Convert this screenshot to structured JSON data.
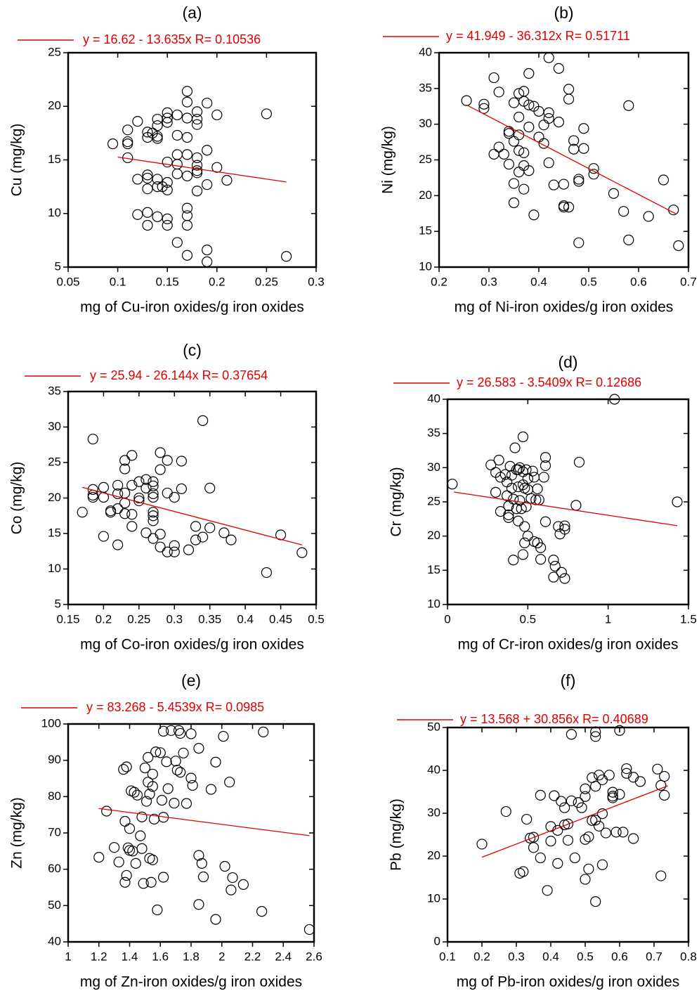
{
  "chart_data": [
    {
      "type": "scatter",
      "title": "(a)",
      "x_label": "mg of Cu-iron oxides/g iron oxides",
      "y_label": "Cu (mg/kg)",
      "xlim": [
        0.05,
        0.3
      ],
      "xticks": [
        0.05,
        0.1,
        0.15,
        0.2,
        0.25,
        0.3
      ],
      "ylim": [
        5,
        25
      ],
      "yticks": [
        5,
        10,
        15,
        20,
        25
      ],
      "series": [
        {
          "color": "#000000",
          "x": [
            0.095,
            0.11,
            0.11,
            0.11,
            0.11,
            0.12,
            0.12,
            0.12,
            0.13,
            0.13,
            0.13,
            0.13,
            0.13,
            0.13,
            0.13,
            0.135,
            0.14,
            0.14,
            0.14,
            0.14,
            0.14,
            0.14,
            0.14,
            0.145,
            0.15,
            0.15,
            0.15,
            0.15,
            0.15,
            0.15,
            0.15,
            0.15,
            0.16,
            0.16,
            0.16,
            0.16,
            0.16,
            0.16,
            0.17,
            0.17,
            0.17,
            0.17,
            0.17,
            0.17,
            0.17,
            0.17,
            0.17,
            0.17,
            0.18,
            0.18,
            0.18,
            0.18,
            0.18,
            0.18,
            0.18,
            0.18,
            0.19,
            0.19,
            0.19,
            0.19,
            0.19,
            0.2,
            0.2,
            0.21,
            0.25,
            0.27
          ],
          "values": [
            16.5,
            17.8,
            16.5,
            16.7,
            15.2,
            18.6,
            13.2,
            9.9,
            17.6,
            17.1,
            13.6,
            13.3,
            12.3,
            10.1,
            8.9,
            17.5,
            18.8,
            18.2,
            17.2,
            17.0,
            13.2,
            12.5,
            9.7,
            12.5,
            19.4,
            18.9,
            18.5,
            14.8,
            12.9,
            12.2,
            9.5,
            8.9,
            19.2,
            17.3,
            15.5,
            14.6,
            13.7,
            7.3,
            21.4,
            20.4,
            18.9,
            17.1,
            15.5,
            13.5,
            10.5,
            9.8,
            8.9,
            6.1,
            19.5,
            18.8,
            18.3,
            15.2,
            14.5,
            14.0,
            13.8,
            12.1,
            20.3,
            15.9,
            12.7,
            6.6,
            5.5,
            19.2,
            14.3,
            13.1,
            19.3,
            6.0
          ]
        },
        {
          "name": "y = 16.62 - 13.635x R= 0.10536",
          "color": "#e00000",
          "x": [
            0.1,
            0.27
          ],
          "values": [
            15.26,
            12.94
          ]
        }
      ]
    },
    {
      "type": "scatter",
      "title": "(b)",
      "x_label": "mg of Ni-iron oxides/g iron oxides",
      "y_label": "Ni  (mg/kg)",
      "xlim": [
        0.2,
        0.7
      ],
      "xticks": [
        0.2,
        0.3,
        0.4,
        0.5,
        0.6,
        0.7
      ],
      "ylim": [
        10,
        40
      ],
      "yticks": [
        10,
        15,
        20,
        25,
        30,
        35,
        40
      ],
      "series": [
        {
          "color": "#000000",
          "x": [
            0.255,
            0.29,
            0.29,
            0.31,
            0.31,
            0.32,
            0.32,
            0.33,
            0.34,
            0.34,
            0.34,
            0.35,
            0.35,
            0.35,
            0.35,
            0.36,
            0.36,
            0.36,
            0.36,
            0.36,
            0.37,
            0.37,
            0.37,
            0.37,
            0.37,
            0.38,
            0.38,
            0.38,
            0.38,
            0.39,
            0.39,
            0.4,
            0.4,
            0.41,
            0.41,
            0.42,
            0.42,
            0.42,
            0.42,
            0.43,
            0.44,
            0.44,
            0.45,
            0.45,
            0.45,
            0.46,
            0.46,
            0.46,
            0.47,
            0.47,
            0.48,
            0.48,
            0.48,
            0.49,
            0.49,
            0.51,
            0.51,
            0.55,
            0.57,
            0.58,
            0.58,
            0.62,
            0.65,
            0.67,
            0.68
          ],
          "values": [
            33.3,
            32.8,
            32.2,
            36.5,
            25.8,
            34.5,
            26.8,
            25.8,
            29.0,
            28.7,
            24.4,
            33.0,
            27.6,
            21.7,
            19.0,
            34.3,
            31.0,
            28.5,
            26.3,
            23.3,
            34.6,
            33.2,
            26.0,
            24.2,
            20.9,
            37.1,
            32.7,
            29.6,
            23.5,
            32.5,
            17.3,
            31.8,
            28.2,
            27.3,
            29.9,
            39.3,
            31.6,
            30.8,
            24.6,
            21.5,
            37.8,
            30.3,
            21.6,
            18.6,
            18.4,
            34.9,
            33.5,
            18.4,
            27.7,
            26.5,
            22.3,
            22.0,
            13.4,
            29.4,
            26.6,
            23.8,
            23.0,
            20.3,
            17.8,
            32.6,
            13.8,
            17.1,
            22.2,
            18.0,
            13.0
          ]
        },
        {
          "name": "y = 41.949 - 36.312x R= 0.51711",
          "color": "#e00000",
          "x": [
            0.255,
            0.675
          ],
          "values": [
            32.69,
            17.44
          ]
        }
      ]
    },
    {
      "type": "scatter",
      "title": "(c)",
      "x_label": "mg of Co-iron oxides/g iron oxides",
      "y_label": "Co (mg/kg)",
      "xlim": [
        0.15,
        0.5
      ],
      "xticks": [
        0.15,
        0.2,
        0.25,
        0.3,
        0.35,
        0.4,
        0.45,
        0.5
      ],
      "ylim": [
        5,
        35
      ],
      "yticks": [
        5,
        10,
        15,
        20,
        25,
        30,
        35
      ],
      "series": [
        {
          "color": "#000000",
          "x": [
            0.17,
            0.185,
            0.185,
            0.185,
            0.185,
            0.2,
            0.2,
            0.2,
            0.21,
            0.21,
            0.22,
            0.22,
            0.22,
            0.22,
            0.23,
            0.23,
            0.23,
            0.23,
            0.23,
            0.24,
            0.24,
            0.24,
            0.24,
            0.25,
            0.25,
            0.25,
            0.26,
            0.26,
            0.26,
            0.27,
            0.27,
            0.27,
            0.27,
            0.27,
            0.27,
            0.27,
            0.27,
            0.28,
            0.28,
            0.28,
            0.28,
            0.29,
            0.29,
            0.29,
            0.3,
            0.3,
            0.3,
            0.31,
            0.31,
            0.32,
            0.33,
            0.33,
            0.34,
            0.34,
            0.35,
            0.35,
            0.37,
            0.38,
            0.43,
            0.45,
            0.48
          ],
          "values": [
            18.0,
            28.3,
            21.2,
            20.4,
            20.1,
            21.5,
            20.1,
            14.6,
            18.2,
            18.0,
            21.8,
            20.6,
            18.5,
            13.4,
            25.3,
            24.1,
            20.7,
            19.3,
            17.8,
            26.0,
            21.8,
            17.7,
            16.0,
            22.3,
            20.0,
            19.6,
            22.6,
            21.4,
            15.1,
            22.3,
            21.7,
            20.6,
            20.1,
            18.0,
            17.5,
            16.8,
            14.3,
            26.4,
            24.0,
            14.9,
            13.1,
            25.3,
            20.7,
            12.4,
            20.1,
            13.3,
            12.4,
            25.2,
            21.3,
            12.7,
            16.0,
            14.1,
            30.9,
            14.5,
            21.4,
            15.8,
            15.1,
            14.1,
            9.5,
            14.8,
            12.3
          ]
        },
        {
          "name": "y = 25.94 - 26.144x R= 0.37654",
          "color": "#e00000",
          "x": [
            0.17,
            0.48
          ],
          "values": [
            21.5,
            13.39
          ]
        }
      ]
    },
    {
      "type": "scatter",
      "title": "(d)",
      "x_label": "mg of Cr-iron oxides/g iron oxides",
      "y_label": "Cr (mg/kg)",
      "xlim": [
        0,
        1.5
      ],
      "xticks": [
        0,
        0.5,
        1,
        1.5
      ],
      "ylim": [
        10,
        40
      ],
      "yticks": [
        10,
        15,
        20,
        25,
        30,
        35,
        40
      ],
      "series": [
        {
          "color": "#000000",
          "x": [
            0.03,
            0.27,
            0.3,
            0.3,
            0.32,
            0.33,
            0.33,
            0.36,
            0.37,
            0.37,
            0.38,
            0.38,
            0.38,
            0.39,
            0.4,
            0.4,
            0.41,
            0.41,
            0.42,
            0.43,
            0.43,
            0.44,
            0.44,
            0.44,
            0.45,
            0.45,
            0.46,
            0.47,
            0.47,
            0.47,
            0.47,
            0.48,
            0.48,
            0.48,
            0.49,
            0.49,
            0.5,
            0.5,
            0.5,
            0.52,
            0.53,
            0.54,
            0.54,
            0.55,
            0.56,
            0.56,
            0.57,
            0.58,
            0.58,
            0.6,
            0.61,
            0.61,
            0.61,
            0.66,
            0.66,
            0.67,
            0.69,
            0.7,
            0.71,
            0.73,
            0.73,
            0.73,
            0.8,
            0.82,
            1.04,
            1.43
          ],
          "values": [
            27.6,
            30.4,
            29.3,
            26.4,
            31.1,
            28.6,
            23.6,
            29.0,
            27.9,
            25.9,
            24.4,
            23.1,
            22.7,
            30.2,
            28.9,
            27.0,
            25.4,
            16.5,
            32.9,
            29.7,
            24.0,
            29.7,
            27.2,
            22.2,
            30.0,
            25.2,
            24.0,
            34.5,
            29.4,
            27.5,
            17.3,
            27.0,
            21.4,
            19.0,
            29.7,
            24.3,
            28.4,
            26.8,
            20.0,
            25.5,
            29.5,
            28.6,
            19.2,
            25.3,
            26.9,
            19.0,
            25.3,
            16.6,
            18.3,
            28.6,
            30.3,
            31.5,
            22.1,
            16.5,
            14.0,
            15.6,
            21.4,
            20.3,
            14.7,
            21.0,
            21.5,
            13.8,
            24.5,
            30.8,
            40.0,
            25.0
          ]
        },
        {
          "name": "y = 26.583 - 3.5409x R= 0.12686",
          "color": "#e00000",
          "x": [
            0.04,
            1.43
          ],
          "values": [
            26.44,
            21.52
          ]
        }
      ]
    },
    {
      "type": "scatter",
      "title": "(e)",
      "x_label": "mg of Zn-iron oxides/g iron oxides",
      "y_label": "Zn (mg/kg)",
      "xlim": [
        1,
        2.6
      ],
      "xticks": [
        1,
        1.2,
        1.4,
        1.6,
        1.8,
        2,
        2.2,
        2.4,
        2.6
      ],
      "ylim": [
        40,
        100
      ],
      "yticks": [
        40,
        50,
        60,
        70,
        80,
        90,
        100
      ],
      "series": [
        {
          "color": "#000000",
          "x": [
            1.2,
            1.25,
            1.3,
            1.33,
            1.36,
            1.37,
            1.37,
            1.38,
            1.38,
            1.39,
            1.4,
            1.4,
            1.41,
            1.42,
            1.43,
            1.44,
            1.45,
            1.47,
            1.48,
            1.48,
            1.49,
            1.5,
            1.51,
            1.52,
            1.52,
            1.53,
            1.53,
            1.54,
            1.55,
            1.55,
            1.55,
            1.56,
            1.57,
            1.58,
            1.6,
            1.61,
            1.62,
            1.62,
            1.62,
            1.64,
            1.65,
            1.67,
            1.69,
            1.7,
            1.71,
            1.72,
            1.73,
            1.73,
            1.75,
            1.77,
            1.8,
            1.8,
            1.81,
            1.85,
            1.85,
            1.85,
            1.87,
            1.88,
            1.93,
            1.96,
            1.96,
            2.01,
            2.02,
            2.05,
            2.06,
            2.07,
            2.14,
            2.26,
            2.27,
            2.57
          ],
          "values": [
            63.3,
            76.0,
            66.0,
            62.0,
            87.5,
            73.2,
            56.4,
            88.2,
            58.3,
            65.9,
            71.2,
            65.2,
            81.6,
            65.0,
            81.2,
            61.6,
            80.4,
            69.2,
            74.4,
            65.7,
            56.1,
            87.9,
            78.7,
            90.8,
            84.0,
            80.7,
            63.0,
            56.4,
            86.2,
            82.8,
            62.6,
            73.8,
            92.3,
            48.8,
            92.1,
            79.0,
            98.0,
            74.3,
            57.8,
            89.6,
            82.2,
            98.2,
            78.2,
            89.8,
            87.3,
            98.2,
            97.4,
            86.7,
            92.0,
            78.1,
            97.3,
            85.1,
            83.1,
            93.3,
            63.8,
            50.3,
            61.6,
            57.9,
            82.0,
            89.5,
            46.2,
            96.6,
            60.8,
            84.0,
            54.3,
            57.7,
            55.8,
            48.4,
            97.8,
            43.4
          ]
        },
        {
          "name": "y = 83.268 - 5.4539x R= 0.0985",
          "color": "#e00000",
          "x": [
            1.2,
            2.57
          ],
          "values": [
            76.72,
            69.25
          ]
        }
      ]
    },
    {
      "type": "scatter",
      "title": "(f)",
      "x_label": "mg of Pb-iron oxides/g iron oxides",
      "y_label": "Pb (mg/kg)",
      "xlim": [
        0.1,
        0.8
      ],
      "xticks": [
        0.1,
        0.2,
        0.3,
        0.4,
        0.5,
        0.6,
        0.7,
        0.8
      ],
      "ylim": [
        0,
        50
      ],
      "yticks": [
        0,
        10,
        20,
        30,
        40,
        50
      ],
      "series": [
        {
          "color": "#000000",
          "x": [
            0.2,
            0.27,
            0.31,
            0.32,
            0.33,
            0.34,
            0.35,
            0.35,
            0.37,
            0.37,
            0.39,
            0.4,
            0.4,
            0.41,
            0.42,
            0.42,
            0.43,
            0.44,
            0.44,
            0.45,
            0.45,
            0.46,
            0.46,
            0.47,
            0.48,
            0.49,
            0.5,
            0.5,
            0.5,
            0.5,
            0.51,
            0.51,
            0.52,
            0.52,
            0.53,
            0.53,
            0.53,
            0.53,
            0.53,
            0.54,
            0.54,
            0.55,
            0.55,
            0.55,
            0.56,
            0.57,
            0.58,
            0.58,
            0.58,
            0.59,
            0.6,
            0.6,
            0.61,
            0.62,
            0.62,
            0.64,
            0.64,
            0.66,
            0.71,
            0.72,
            0.72,
            0.73,
            0.73
          ],
          "values": [
            22.8,
            30.4,
            16.0,
            16.4,
            28.6,
            24.2,
            22.0,
            24.4,
            34.2,
            19.6,
            12.0,
            26.9,
            23.5,
            34.1,
            18.3,
            26.0,
            32.8,
            31.3,
            27.3,
            27.5,
            23.7,
            48.4,
            32.9,
            19.6,
            32.5,
            31.3,
            14.6,
            35.7,
            33.9,
            23.9,
            17.0,
            24.5,
            38.3,
            28.3,
            49.0,
            47.9,
            36.3,
            28.4,
            9.4,
            38.9,
            27.0,
            37.8,
            29.9,
            18.0,
            25.4,
            38.9,
            34.9,
            33.6,
            34.0,
            25.6,
            49.3,
            34.4,
            25.6,
            39.3,
            40.4,
            24.1,
            38.4,
            37.4,
            40.3,
            36.5,
            15.4,
            38.6,
            34.2
          ]
        },
        {
          "name": "y = 13.568 + 30.856x R= 0.40689",
          "color": "#e00000",
          "x": [
            0.2,
            0.74
          ],
          "values": [
            19.74,
            36.4
          ]
        }
      ]
    }
  ]
}
